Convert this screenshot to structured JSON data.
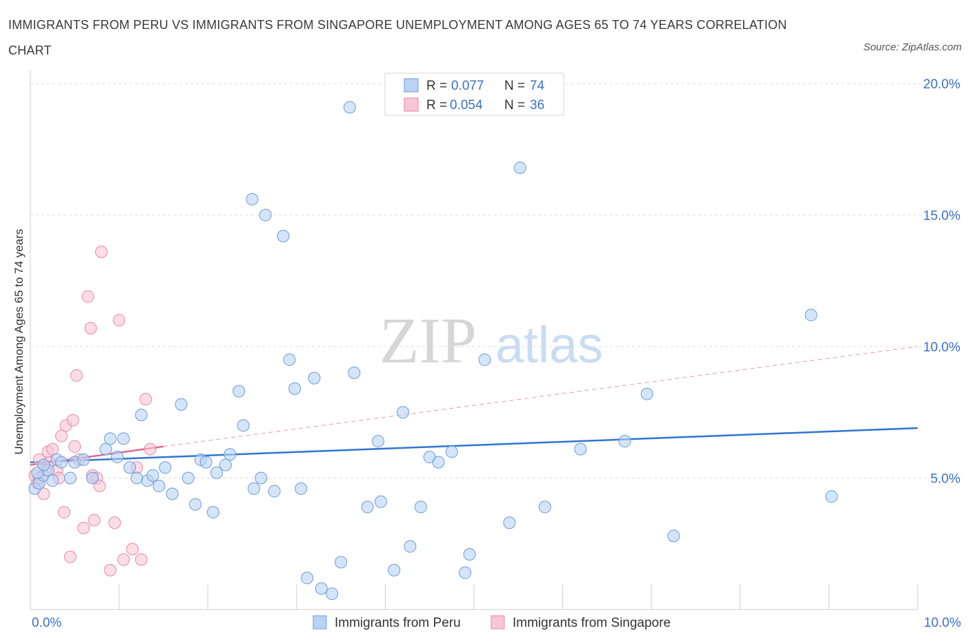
{
  "title": "IMMIGRANTS FROM PERU VS IMMIGRANTS FROM SINGAPORE UNEMPLOYMENT AMONG AGES 65 TO 74 YEARS CORRELATION CHART",
  "source": "Source: ZipAtlas.com",
  "watermark": {
    "zip": "ZIP",
    "atlas": "atlas"
  },
  "colors": {
    "peru_fill": "#b9d3f5",
    "peru_stroke": "#6a9bd8",
    "peru_line": "#2f75d1",
    "singapore_fill": "#f8c6d4",
    "singapore_stroke": "#e888a6",
    "singapore_line": "#e06890",
    "axis_label": "#3a70c8",
    "grid": "#dcdcdc"
  },
  "legend_stats": [
    {
      "r_label": "R =",
      "r_value": "0.077",
      "n_label": "N =",
      "n_value": "74"
    },
    {
      "r_label": "R =",
      "r_value": "0.054",
      "n_label": "N =",
      "n_value": "36"
    }
  ],
  "chart_data": {
    "type": "scatter",
    "title": "IMMIGRANTS FROM PERU VS IMMIGRANTS FROM SINGAPORE UNEMPLOYMENT AMONG AGES 65 TO 74 YEARS CORRELATION CHART",
    "xlabel": "",
    "ylabel": "Unemployment Among Ages 65 to 74 years",
    "xlim": [
      0,
      10
    ],
    "ylim": [
      0,
      20.5
    ],
    "x_tick_labels": [
      "0.0%",
      "10.0%"
    ],
    "y_ticks": [
      5,
      10,
      15,
      20
    ],
    "y_tick_labels": [
      "5.0%",
      "10.0%",
      "15.0%",
      "20.0%"
    ],
    "grid": true,
    "legend_position": "bottom",
    "series": [
      {
        "name": "Immigrants from Peru",
        "trend": {
          "x": [
            0.0,
            10.0
          ],
          "y": [
            5.6,
            6.9
          ]
        },
        "points": [
          [
            0.05,
            4.6
          ],
          [
            0.1,
            4.8
          ],
          [
            0.15,
            5.1
          ],
          [
            0.2,
            5.3
          ],
          [
            0.3,
            5.7
          ],
          [
            0.35,
            5.6
          ],
          [
            0.45,
            5.0
          ],
          [
            0.5,
            5.6
          ],
          [
            0.6,
            5.7
          ],
          [
            0.7,
            5.0
          ],
          [
            0.85,
            6.1
          ],
          [
            0.9,
            6.5
          ],
          [
            0.98,
            5.8
          ],
          [
            1.05,
            6.5
          ],
          [
            1.12,
            5.4
          ],
          [
            1.2,
            5.0
          ],
          [
            1.25,
            7.4
          ],
          [
            1.32,
            4.9
          ],
          [
            1.38,
            5.1
          ],
          [
            1.45,
            4.7
          ],
          [
            1.52,
            5.4
          ],
          [
            1.6,
            4.4
          ],
          [
            1.7,
            7.8
          ],
          [
            1.78,
            5.0
          ],
          [
            1.86,
            4.0
          ],
          [
            1.92,
            5.7
          ],
          [
            1.98,
            5.6
          ],
          [
            2.06,
            3.7
          ],
          [
            2.1,
            5.2
          ],
          [
            2.2,
            5.5
          ],
          [
            2.25,
            5.9
          ],
          [
            2.35,
            8.3
          ],
          [
            2.4,
            7.0
          ],
          [
            2.5,
            15.6
          ],
          [
            2.52,
            4.6
          ],
          [
            2.6,
            5.0
          ],
          [
            2.65,
            15.0
          ],
          [
            2.75,
            4.5
          ],
          [
            2.85,
            14.2
          ],
          [
            2.92,
            9.5
          ],
          [
            2.98,
            8.4
          ],
          [
            3.05,
            4.6
          ],
          [
            3.12,
            1.2
          ],
          [
            3.2,
            8.8
          ],
          [
            3.28,
            0.8
          ],
          [
            3.4,
            0.6
          ],
          [
            3.5,
            1.8
          ],
          [
            3.6,
            19.1
          ],
          [
            3.65,
            9.0
          ],
          [
            3.8,
            3.9
          ],
          [
            3.92,
            6.4
          ],
          [
            3.95,
            4.1
          ],
          [
            4.1,
            1.5
          ],
          [
            4.2,
            7.5
          ],
          [
            4.28,
            2.4
          ],
          [
            4.4,
            3.9
          ],
          [
            4.5,
            5.8
          ],
          [
            4.6,
            5.6
          ],
          [
            4.75,
            6.0
          ],
          [
            4.9,
            1.4
          ],
          [
            4.95,
            2.1
          ],
          [
            5.12,
            9.5
          ],
          [
            5.4,
            3.3
          ],
          [
            5.52,
            16.8
          ],
          [
            5.8,
            3.9
          ],
          [
            6.2,
            6.1
          ],
          [
            6.7,
            6.4
          ],
          [
            6.95,
            8.2
          ],
          [
            7.25,
            2.8
          ],
          [
            8.8,
            11.2
          ],
          [
            9.03,
            4.3
          ],
          [
            0.25,
            4.9
          ],
          [
            0.08,
            5.2
          ],
          [
            0.15,
            5.5
          ]
        ]
      },
      {
        "name": "Immigrants from Singapore",
        "trend": {
          "x": [
            0.0,
            1.5
          ],
          "y": [
            5.5,
            6.2
          ]
        },
        "trend_projection": {
          "x": [
            1.5,
            10.0
          ],
          "y": [
            6.2,
            10.0
          ]
        },
        "points": [
          [
            0.05,
            5.1
          ],
          [
            0.08,
            4.8
          ],
          [
            0.1,
            5.0
          ],
          [
            0.15,
            4.4
          ],
          [
            0.18,
            5.3
          ],
          [
            0.2,
            6.0
          ],
          [
            0.22,
            5.6
          ],
          [
            0.25,
            6.1
          ],
          [
            0.3,
            5.3
          ],
          [
            0.32,
            5.0
          ],
          [
            0.35,
            6.6
          ],
          [
            0.38,
            3.7
          ],
          [
            0.4,
            7.0
          ],
          [
            0.45,
            2.0
          ],
          [
            0.48,
            7.2
          ],
          [
            0.5,
            6.2
          ],
          [
            0.52,
            8.9
          ],
          [
            0.55,
            5.7
          ],
          [
            0.6,
            3.1
          ],
          [
            0.65,
            11.9
          ],
          [
            0.68,
            10.7
          ],
          [
            0.7,
            5.1
          ],
          [
            0.72,
            3.4
          ],
          [
            0.75,
            5.0
          ],
          [
            0.78,
            4.7
          ],
          [
            0.8,
            13.6
          ],
          [
            0.9,
            1.5
          ],
          [
            0.95,
            3.3
          ],
          [
            1.0,
            11.0
          ],
          [
            1.05,
            1.9
          ],
          [
            1.15,
            2.3
          ],
          [
            1.2,
            5.4
          ],
          [
            1.25,
            1.9
          ],
          [
            1.3,
            8.0
          ],
          [
            1.35,
            6.1
          ],
          [
            0.1,
            5.7
          ]
        ]
      }
    ]
  }
}
